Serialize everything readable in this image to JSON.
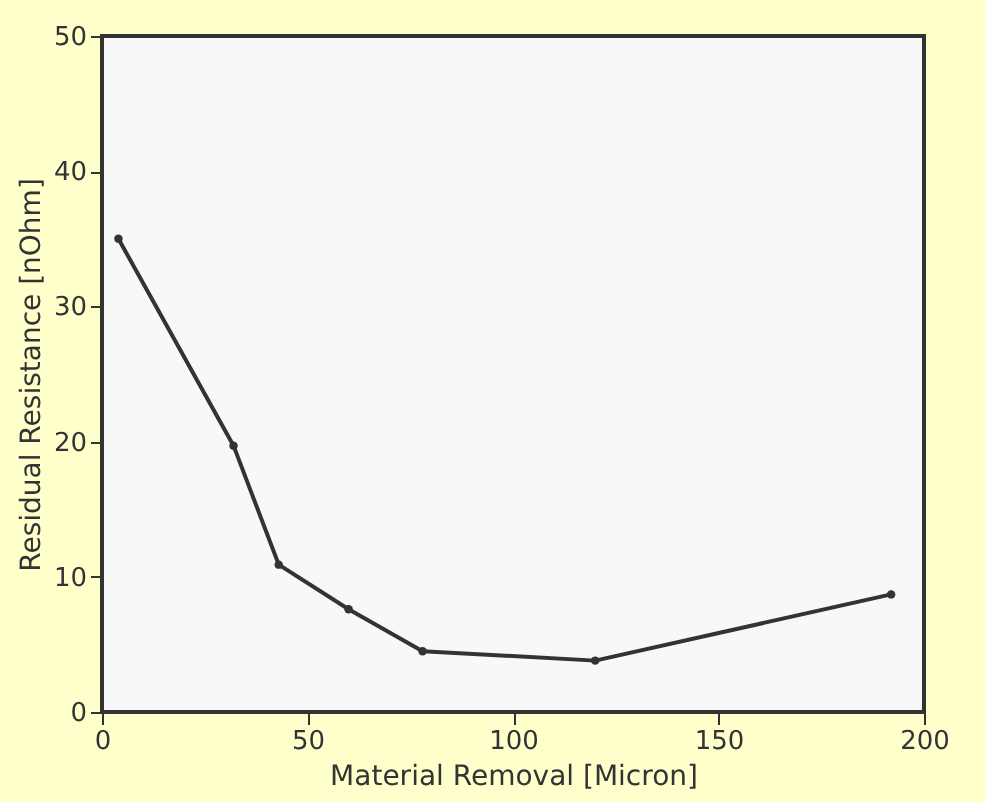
{
  "chart_data": {
    "type": "line",
    "xlabel": "Material Removal [Micron]",
    "ylabel": "Residual Resistance [nOhm]",
    "x": [
      4,
      32,
      43,
      60,
      78,
      120,
      192
    ],
    "series": [
      {
        "color": "#333333",
        "values": [
          35,
          19.7,
          10.9,
          7.6,
          4.5,
          3.8,
          8.7
        ]
      }
    ],
    "xlim": [
      0,
      200
    ],
    "xticks": [
      0,
      50,
      100,
      150,
      200
    ],
    "ylim": [
      0,
      50
    ],
    "yticks": [
      0,
      10,
      20,
      30,
      40,
      50
    ],
    "marker": "circle",
    "line_style": "solid",
    "grid": false,
    "legend": false
  }
}
